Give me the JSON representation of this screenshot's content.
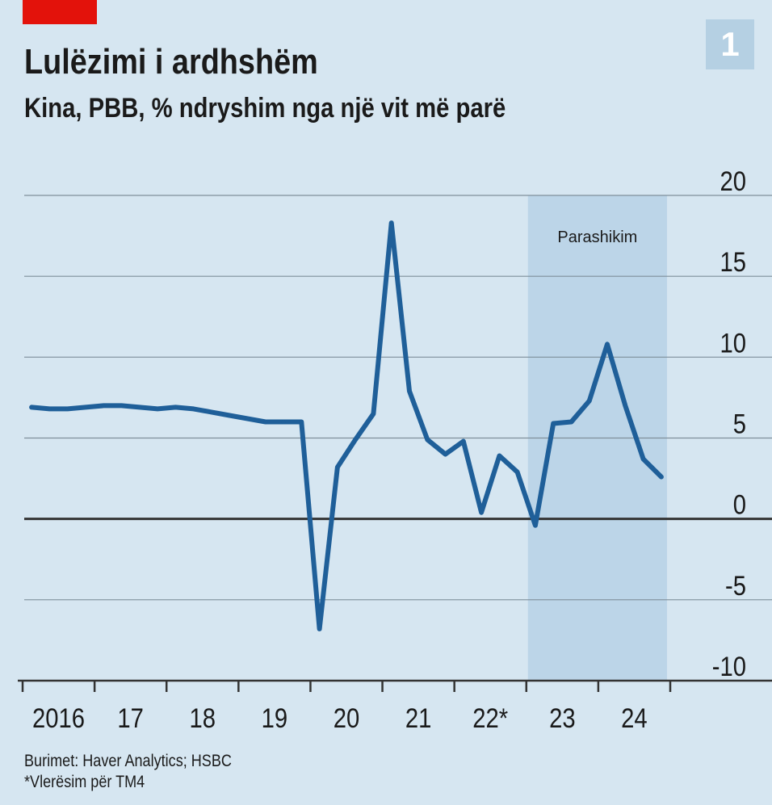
{
  "header": {
    "title": "Lulëzimi i ardhshëm",
    "subtitle": "Kina, PBB, % ndryshim nga një vit më parë",
    "badge": "1"
  },
  "footer": {
    "source": "Burimet: Haver Analytics; HSBC",
    "note": "*Vlerësim për TM4"
  },
  "colors": {
    "background": "#d6e6f1",
    "line": "#1f5f99",
    "forecast_band": "#bcd5e8",
    "accent": "#e3120b"
  },
  "chart_data": {
    "type": "line",
    "x_tick_labels": [
      "2016",
      "17",
      "18",
      "19",
      "20",
      "21",
      "22*",
      "23",
      "24"
    ],
    "ylim": [
      -10,
      20
    ],
    "y_ticks": [
      20,
      15,
      10,
      5,
      0,
      -5,
      -10
    ],
    "y_tick_labels": [
      "20",
      "15",
      "10",
      "5",
      "0",
      "-5",
      "-10"
    ],
    "y_axis_position": "right",
    "grid": true,
    "forecast": {
      "label": "Parashikim",
      "start": 2023.0,
      "end": 2025.0
    },
    "series": [
      {
        "x": [
          2016.125,
          2016.375,
          2016.625,
          2016.875,
          2017.125,
          2017.375,
          2017.625,
          2017.875,
          2018.125,
          2018.375,
          2018.625,
          2018.875,
          2019.125,
          2019.375,
          2019.625,
          2019.875,
          2020.125,
          2020.375,
          2020.625,
          2020.875,
          2021.125,
          2021.375,
          2021.625,
          2021.875,
          2022.125,
          2022.375,
          2022.625,
          2022.875,
          2023.125,
          2023.375,
          2023.625,
          2023.875,
          2024.125,
          2024.375,
          2024.625,
          2024.875
        ],
        "y": [
          6.9,
          6.8,
          6.8,
          6.9,
          7.0,
          7.0,
          6.9,
          6.8,
          6.9,
          6.8,
          6.6,
          6.4,
          6.2,
          6.0,
          6.0,
          6.0,
          -6.8,
          3.2,
          4.9,
          6.5,
          18.3,
          7.9,
          4.9,
          4.0,
          4.8,
          0.4,
          3.9,
          2.9,
          -0.4,
          5.9,
          6.0,
          7.3,
          10.8,
          7.0,
          3.7,
          2.6
        ]
      }
    ]
  }
}
